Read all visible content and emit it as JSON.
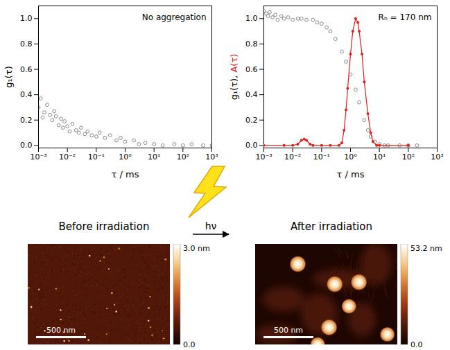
{
  "chart_data": [
    {
      "type": "scatter",
      "annotation": "No aggregation",
      "xlabel": "τ / ms",
      "ylabel": "g₁(τ)",
      "log": "x",
      "grid": false,
      "xlim": [
        0.001,
        1000
      ],
      "xticks": [
        {
          "value": 0.001,
          "label": "10⁻³"
        },
        {
          "value": 0.01,
          "label": "10⁻²"
        },
        {
          "value": 0.1,
          "label": "10⁻¹"
        },
        {
          "value": 1,
          "label": "10⁰"
        },
        {
          "value": 10,
          "label": "10¹"
        },
        {
          "value": 100,
          "label": "10²"
        },
        {
          "value": 1000,
          "label": "10³"
        }
      ],
      "ylim": [
        -0.02,
        1.1
      ],
      "yticks": [
        {
          "value": 0,
          "label": "0.0"
        },
        {
          "value": 0.2,
          "label": "0.2"
        },
        {
          "value": 0.4,
          "label": "0.4"
        },
        {
          "value": 0.6,
          "label": "0.6"
        },
        {
          "value": 0.8,
          "label": "0.8"
        },
        {
          "value": 1,
          "label": "1.0"
        }
      ],
      "series": [
        {
          "type": "scatter",
          "marker": "circle",
          "color": "#6e6e6e",
          "x": [
            0.001,
            0.0012,
            0.0014,
            0.0016,
            0.002,
            0.0025,
            0.003,
            0.0035,
            0.004,
            0.005,
            0.006,
            0.007,
            0.008,
            0.01,
            0.012,
            0.015,
            0.02,
            0.025,
            0.03,
            0.04,
            0.05,
            0.07,
            0.1,
            0.13,
            0.2,
            0.3,
            0.5,
            0.7,
            1,
            2,
            3,
            5,
            10,
            20,
            50,
            100,
            200,
            500,
            1000
          ],
          "values": [
            0.3,
            0.37,
            0.22,
            0.26,
            0.32,
            0.24,
            0.2,
            0.27,
            0.23,
            0.16,
            0.21,
            0.14,
            0.19,
            0.15,
            0.11,
            0.17,
            0.12,
            0.1,
            0.14,
            0.09,
            0.11,
            0.08,
            0.07,
            0.1,
            0.06,
            0.08,
            0.04,
            0.06,
            0.03,
            0.04,
            0.01,
            0.02,
            0.01,
            0.0,
            0.01,
            0.0,
            0.01,
            0.0,
            0.0
          ]
        }
      ]
    },
    {
      "type": "line",
      "annotation": "Rₕ = 170 nm",
      "xlabel": "τ / ms",
      "ylabel": "g₁(τ), A(τ)",
      "log": "x",
      "grid": false,
      "xlim": [
        0.001,
        1000
      ],
      "xticks": [
        {
          "value": 0.001,
          "label": "10⁻³"
        },
        {
          "value": 0.01,
          "label": "10⁻²"
        },
        {
          "value": 0.1,
          "label": "10⁻¹"
        },
        {
          "value": 1,
          "label": "10⁰"
        },
        {
          "value": 10,
          "label": "10¹"
        },
        {
          "value": 100,
          "label": "10²"
        },
        {
          "value": 1000,
          "label": "10³"
        }
      ],
      "ylim": [
        -0.02,
        1.1
      ],
      "yticks": [
        {
          "value": 0,
          "label": "0.0"
        },
        {
          "value": 0.2,
          "label": "0.2"
        },
        {
          "value": 0.4,
          "label": "0.4"
        },
        {
          "value": 0.6,
          "label": "0.6"
        },
        {
          "value": 0.8,
          "label": "0.8"
        },
        {
          "value": 1,
          "label": "1.0"
        }
      ],
      "series": [
        {
          "type": "scatter",
          "marker": "circle",
          "color": "#6e6e6e",
          "x": [
            0.001,
            0.0012,
            0.0014,
            0.0016,
            0.002,
            0.0025,
            0.003,
            0.004,
            0.005,
            0.007,
            0.01,
            0.015,
            0.02,
            0.03,
            0.05,
            0.07,
            0.1,
            0.15,
            0.2,
            0.3,
            0.5,
            0.7,
            1,
            1.5,
            2,
            3,
            4,
            5,
            7,
            10,
            15,
            20,
            50,
            100,
            200
          ],
          "values": [
            1.06,
            1.04,
            1.02,
            1.05,
            1.01,
            1.03,
            0.99,
            1.02,
            1.0,
            1.01,
            0.99,
            1.0,
            1.0,
            0.99,
            0.99,
            0.97,
            0.96,
            0.93,
            0.9,
            0.84,
            0.74,
            0.66,
            0.56,
            0.44,
            0.34,
            0.2,
            0.12,
            0.07,
            0.03,
            0.01,
            0.0,
            0.0,
            0.0,
            0.0,
            0.0
          ]
        },
        {
          "type": "line",
          "marker": "dot",
          "color": "#e0201a",
          "x": [
            0.001,
            0.005,
            0.01,
            0.015,
            0.02,
            0.025,
            0.03,
            0.04,
            0.05,
            0.1,
            0.2,
            0.4,
            0.5,
            0.6,
            0.7,
            0.8,
            1,
            1.2,
            1.5,
            1.8,
            2,
            2.5,
            3,
            4,
            5,
            6,
            8,
            10,
            100
          ],
          "values": [
            0,
            0,
            0,
            0.01,
            0.04,
            0.05,
            0.04,
            0.01,
            0,
            0,
            0,
            0,
            0.02,
            0.12,
            0.28,
            0.45,
            0.72,
            0.9,
            1.0,
            0.97,
            0.9,
            0.72,
            0.5,
            0.25,
            0.1,
            0.03,
            0,
            0,
            0
          ]
        }
      ]
    }
  ],
  "figure": {
    "arrow_label": "hν",
    "images": [
      {
        "caption": "Before irradiation",
        "scale_bar": "500 nm",
        "colorbar": {
          "range": [
            0.0,
            3.0
          ],
          "ticks": [
            {
              "value": 3.0,
              "label": "3.0 nm"
            },
            {
              "value": 0.0,
              "label": "0.0"
            }
          ]
        }
      },
      {
        "caption": "After irradiation",
        "scale_bar": "500 nm",
        "colorbar": {
          "range": [
            0.0,
            53.2
          ],
          "ticks": [
            {
              "value": 53.2,
              "label": "53.2 nm"
            },
            {
              "value": 0.0,
              "label": "0.0"
            }
          ]
        }
      }
    ]
  }
}
